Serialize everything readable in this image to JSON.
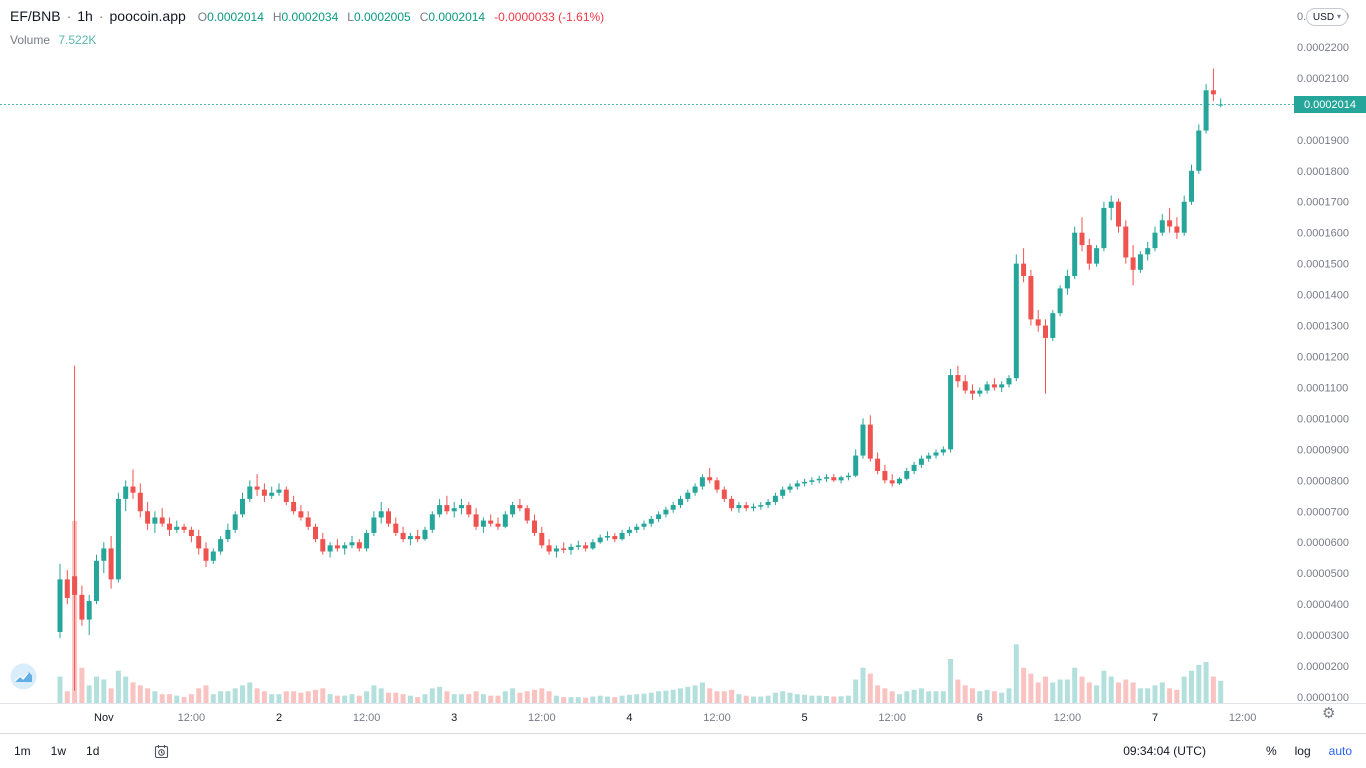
{
  "header": {
    "symbol": "EF/BNB",
    "separator": "·",
    "interval": "1h",
    "exchange": "poocoin.app",
    "ohlc": {
      "o_label": "O",
      "o": "0.0002014",
      "h_label": "H",
      "h": "0.0002034",
      "l_label": "L",
      "l": "0.0002005",
      "c_label": "C",
      "c": "0.0002014",
      "change": "-0.0000033 (-1.61%)"
    },
    "volume_label": "Volume",
    "volume_value": "7.522K"
  },
  "price_axis": {
    "currency": "USD",
    "current_price": "0.0002014",
    "labels": [
      "0.0002300",
      "0.0002200",
      "0.0002100",
      "0.0001900",
      "0.0001800",
      "0.0001700",
      "0.0001600",
      "0.0001500",
      "0.0001400",
      "0.0001300",
      "0.0001200",
      "0.0001100",
      "0.0001000",
      "0.0000900",
      "0.0000800",
      "0.0000700",
      "0.0000600",
      "0.0000500",
      "0.0000400",
      "0.0000300",
      "0.0000200",
      "0.0000100"
    ]
  },
  "time_axis": {
    "labels": [
      {
        "index": 6,
        "text": "Nov",
        "major": true
      },
      {
        "index": 18,
        "text": "12:00",
        "major": false
      },
      {
        "index": 30,
        "text": "2",
        "major": true
      },
      {
        "index": 42,
        "text": "12:00",
        "major": false
      },
      {
        "index": 54,
        "text": "3",
        "major": true
      },
      {
        "index": 66,
        "text": "12:00",
        "major": false
      },
      {
        "index": 78,
        "text": "4",
        "major": true
      },
      {
        "index": 90,
        "text": "12:00",
        "major": false
      },
      {
        "index": 102,
        "text": "5",
        "major": true
      },
      {
        "index": 114,
        "text": "12:00",
        "major": false
      },
      {
        "index": 126,
        "text": "6",
        "major": true
      },
      {
        "index": 138,
        "text": "12:00",
        "major": false
      },
      {
        "index": 150,
        "text": "7",
        "major": true
      },
      {
        "index": 162,
        "text": "12:00",
        "major": false
      }
    ]
  },
  "toolbar": {
    "ranges": [
      "1m",
      "1w",
      "1d"
    ],
    "clock": "09:34:04 (UTC)",
    "percent": "%",
    "log": "log",
    "auto": "auto"
  },
  "icons": {
    "chevron_down": "▾",
    "gear": "⚙"
  },
  "colors": {
    "up": "#26a69a",
    "down": "#ef5350",
    "value_teal": "#089981",
    "volume_value": "#58b7ae",
    "change_red": "#f23645",
    "accent_blue": "#2962ff",
    "axis_text": "#787b86",
    "major_text": "#131722",
    "badge_bg": "#26a69a",
    "separator_line": "#e0e3eb"
  },
  "chart_data": {
    "type": "candlestick",
    "title": "EF/BNB 1h poocoin.app",
    "legend_position": "top-left",
    "grid": false,
    "price_unit_note": "OHLC values are x1e-7 (2014 means 0.0002014)",
    "x_note": "one candle per hour; index 6 = Nov 1 00:00; range Oct 31 18:00 - Nov 7 09:00",
    "y_axis": {
      "min": 1e-05,
      "max": 0.00023,
      "tick_step": 1e-05,
      "current_price": 0.0002014
    },
    "columns": [
      "open",
      "high",
      "low",
      "close",
      "volume"
    ],
    "candles": [
      [
        310,
        530,
        290,
        480,
        9000
      ],
      [
        480,
        510,
        400,
        420,
        4000
      ],
      [
        490,
        1170,
        120,
        430,
        62000
      ],
      [
        430,
        460,
        330,
        350,
        12000
      ],
      [
        350,
        430,
        300,
        410,
        6000
      ],
      [
        410,
        560,
        400,
        540,
        9000
      ],
      [
        540,
        600,
        500,
        580,
        8000
      ],
      [
        580,
        620,
        450,
        480,
        5000
      ],
      [
        480,
        760,
        470,
        740,
        11000
      ],
      [
        740,
        800,
        700,
        780,
        9000
      ],
      [
        780,
        835,
        740,
        760,
        7000
      ],
      [
        760,
        790,
        680,
        700,
        6000
      ],
      [
        700,
        730,
        640,
        660,
        5000
      ],
      [
        660,
        700,
        630,
        680,
        4000
      ],
      [
        680,
        710,
        650,
        660,
        3000
      ],
      [
        660,
        680,
        620,
        640,
        3000
      ],
      [
        640,
        670,
        630,
        650,
        2500
      ],
      [
        650,
        660,
        630,
        640,
        2000
      ],
      [
        640,
        650,
        600,
        620,
        3000
      ],
      [
        620,
        640,
        560,
        580,
        5000
      ],
      [
        580,
        600,
        520,
        540,
        6000
      ],
      [
        540,
        580,
        530,
        570,
        3000
      ],
      [
        570,
        620,
        560,
        610,
        4000
      ],
      [
        610,
        660,
        600,
        640,
        4000
      ],
      [
        640,
        700,
        630,
        690,
        5000
      ],
      [
        690,
        760,
        680,
        740,
        6000
      ],
      [
        740,
        800,
        730,
        780,
        7000
      ],
      [
        780,
        820,
        750,
        770,
        5000
      ],
      [
        770,
        790,
        730,
        750,
        4000
      ],
      [
        750,
        780,
        740,
        760,
        3000
      ],
      [
        760,
        790,
        750,
        770,
        3000
      ],
      [
        770,
        780,
        720,
        730,
        4000
      ],
      [
        730,
        750,
        690,
        700,
        4000
      ],
      [
        700,
        720,
        670,
        680,
        3500
      ],
      [
        680,
        700,
        640,
        650,
        4000
      ],
      [
        650,
        660,
        600,
        610,
        4500
      ],
      [
        610,
        630,
        560,
        570,
        5000
      ],
      [
        570,
        600,
        550,
        590,
        3000
      ],
      [
        590,
        610,
        570,
        580,
        2500
      ],
      [
        580,
        600,
        560,
        590,
        2500
      ],
      [
        590,
        620,
        580,
        600,
        3000
      ],
      [
        600,
        610,
        570,
        580,
        2500
      ],
      [
        580,
        640,
        570,
        630,
        4000
      ],
      [
        630,
        700,
        620,
        680,
        6000
      ],
      [
        680,
        730,
        660,
        700,
        5000
      ],
      [
        700,
        710,
        650,
        660,
        3500
      ],
      [
        660,
        680,
        620,
        630,
        3500
      ],
      [
        630,
        650,
        600,
        610,
        3000
      ],
      [
        610,
        630,
        590,
        620,
        2500
      ],
      [
        620,
        640,
        600,
        610,
        2000
      ],
      [
        610,
        650,
        605,
        640,
        3000
      ],
      [
        640,
        700,
        630,
        690,
        5000
      ],
      [
        690,
        740,
        680,
        720,
        5500
      ],
      [
        720,
        750,
        690,
        700,
        4000
      ],
      [
        700,
        730,
        680,
        710,
        3000
      ],
      [
        710,
        740,
        690,
        720,
        3000
      ],
      [
        720,
        730,
        680,
        690,
        3000
      ],
      [
        690,
        710,
        640,
        650,
        4000
      ],
      [
        650,
        680,
        630,
        670,
        3000
      ],
      [
        670,
        690,
        650,
        660,
        2500
      ],
      [
        660,
        680,
        640,
        650,
        2500
      ],
      [
        650,
        700,
        645,
        690,
        4000
      ],
      [
        690,
        730,
        680,
        720,
        5000
      ],
      [
        720,
        740,
        700,
        710,
        3500
      ],
      [
        710,
        720,
        660,
        670,
        4000
      ],
      [
        670,
        690,
        620,
        630,
        4500
      ],
      [
        630,
        650,
        580,
        590,
        5000
      ],
      [
        590,
        610,
        560,
        570,
        4000
      ],
      [
        570,
        590,
        550,
        580,
        2500
      ],
      [
        580,
        600,
        565,
        575,
        2000
      ],
      [
        575,
        595,
        560,
        585,
        2000
      ],
      [
        585,
        605,
        575,
        590,
        2000
      ],
      [
        590,
        600,
        570,
        580,
        1800
      ],
      [
        580,
        610,
        575,
        600,
        2200
      ],
      [
        600,
        625,
        595,
        615,
        2500
      ],
      [
        615,
        635,
        605,
        620,
        2200
      ],
      [
        620,
        630,
        600,
        610,
        2000
      ],
      [
        610,
        640,
        605,
        630,
        2500
      ],
      [
        630,
        650,
        620,
        640,
        2800
      ],
      [
        640,
        660,
        630,
        650,
        3000
      ],
      [
        650,
        670,
        640,
        660,
        3200
      ],
      [
        660,
        685,
        650,
        675,
        3500
      ],
      [
        675,
        700,
        665,
        690,
        4000
      ],
      [
        690,
        715,
        680,
        705,
        4200
      ],
      [
        705,
        730,
        695,
        720,
        4500
      ],
      [
        720,
        750,
        710,
        740,
        5000
      ],
      [
        740,
        770,
        730,
        760,
        5500
      ],
      [
        760,
        790,
        750,
        780,
        6000
      ],
      [
        780,
        820,
        770,
        810,
        7000
      ],
      [
        810,
        840,
        790,
        800,
        5000
      ],
      [
        800,
        810,
        760,
        770,
        4000
      ],
      [
        770,
        780,
        730,
        740,
        4000
      ],
      [
        740,
        750,
        700,
        710,
        4500
      ],
      [
        710,
        730,
        695,
        720,
        3000
      ],
      [
        720,
        730,
        700,
        710,
        2500
      ],
      [
        710,
        725,
        700,
        715,
        2200
      ],
      [
        715,
        730,
        705,
        720,
        2200
      ],
      [
        720,
        740,
        710,
        730,
        2500
      ],
      [
        730,
        760,
        720,
        750,
        3500
      ],
      [
        750,
        780,
        740,
        770,
        4000
      ],
      [
        770,
        790,
        760,
        780,
        3500
      ],
      [
        780,
        800,
        770,
        790,
        3000
      ],
      [
        790,
        805,
        780,
        795,
        2800
      ],
      [
        795,
        810,
        785,
        800,
        2500
      ],
      [
        800,
        815,
        790,
        805,
        2500
      ],
      [
        805,
        820,
        795,
        810,
        2400
      ],
      [
        810,
        820,
        795,
        800,
        2200
      ],
      [
        800,
        815,
        790,
        810,
        2300
      ],
      [
        810,
        825,
        800,
        815,
        2500
      ],
      [
        815,
        900,
        810,
        880,
        8000
      ],
      [
        880,
        1000,
        870,
        980,
        12000
      ],
      [
        980,
        1010,
        860,
        870,
        10000
      ],
      [
        870,
        890,
        820,
        830,
        6000
      ],
      [
        830,
        850,
        790,
        800,
        5000
      ],
      [
        800,
        820,
        780,
        790,
        4000
      ],
      [
        790,
        810,
        785,
        805,
        3000
      ],
      [
        805,
        840,
        800,
        830,
        4000
      ],
      [
        830,
        860,
        820,
        850,
        4500
      ],
      [
        850,
        880,
        840,
        870,
        5000
      ],
      [
        870,
        890,
        860,
        880,
        4000
      ],
      [
        880,
        900,
        870,
        890,
        4000
      ],
      [
        890,
        910,
        880,
        900,
        4000
      ],
      [
        900,
        1160,
        890,
        1140,
        15000
      ],
      [
        1140,
        1170,
        1100,
        1120,
        8000
      ],
      [
        1120,
        1140,
        1080,
        1090,
        6000
      ],
      [
        1090,
        1110,
        1060,
        1080,
        5000
      ],
      [
        1080,
        1100,
        1070,
        1090,
        4000
      ],
      [
        1090,
        1120,
        1080,
        1110,
        4500
      ],
      [
        1110,
        1130,
        1090,
        1100,
        4000
      ],
      [
        1100,
        1120,
        1085,
        1110,
        3500
      ],
      [
        1110,
        1140,
        1100,
        1130,
        5000
      ],
      [
        1130,
        1530,
        1120,
        1500,
        20000
      ],
      [
        1500,
        1550,
        1440,
        1460,
        12000
      ],
      [
        1460,
        1480,
        1300,
        1320,
        10000
      ],
      [
        1320,
        1350,
        1280,
        1300,
        7000
      ],
      [
        1300,
        1320,
        1080,
        1260,
        9000
      ],
      [
        1260,
        1350,
        1250,
        1340,
        7000
      ],
      [
        1340,
        1430,
        1330,
        1420,
        8000
      ],
      [
        1420,
        1480,
        1400,
        1460,
        8000
      ],
      [
        1460,
        1620,
        1450,
        1600,
        12000
      ],
      [
        1600,
        1650,
        1540,
        1560,
        9000
      ],
      [
        1560,
        1580,
        1480,
        1500,
        7000
      ],
      [
        1500,
        1560,
        1490,
        1550,
        6000
      ],
      [
        1550,
        1700,
        1540,
        1680,
        11000
      ],
      [
        1680,
        1720,
        1640,
        1700,
        9000
      ],
      [
        1700,
        1710,
        1600,
        1620,
        7000
      ],
      [
        1620,
        1640,
        1500,
        1520,
        8000
      ],
      [
        1520,
        1560,
        1430,
        1480,
        7000
      ],
      [
        1480,
        1540,
        1470,
        1530,
        5000
      ],
      [
        1530,
        1570,
        1510,
        1550,
        5000
      ],
      [
        1550,
        1620,
        1540,
        1600,
        6000
      ],
      [
        1600,
        1660,
        1590,
        1640,
        7000
      ],
      [
        1640,
        1680,
        1600,
        1620,
        5000
      ],
      [
        1620,
        1650,
        1580,
        1600,
        4500
      ],
      [
        1600,
        1720,
        1590,
        1700,
        9000
      ],
      [
        1700,
        1820,
        1690,
        1800,
        11000
      ],
      [
        1800,
        1950,
        1790,
        1930,
        13000
      ],
      [
        1930,
        2080,
        1920,
        2060,
        14000
      ],
      [
        2060,
        2130,
        2025,
        2047,
        9000
      ],
      [
        2014,
        2034,
        2005,
        2014,
        7522
      ]
    ]
  }
}
